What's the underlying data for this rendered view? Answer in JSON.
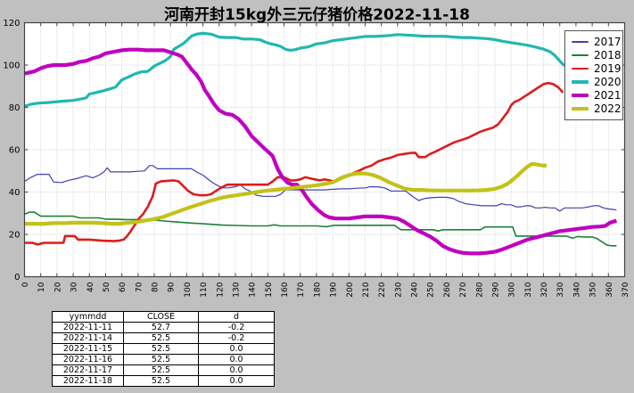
{
  "title": "河南开封15kg外三元仔猪价格2022-11-18",
  "colors": {
    "background": "#c0c0c0",
    "plot_bg": "#ffffff",
    "grid": "#b2b2c4",
    "frame": "#444444",
    "tick_label": "#000000"
  },
  "chart_data": {
    "type": "line",
    "title": "河南开封15kg外三元仔猪价格2022-11-18",
    "xlabel": "",
    "ylabel": "",
    "xlim": [
      0,
      370
    ],
    "ylim": [
      0,
      120
    ],
    "x_ticks": [
      0,
      10,
      20,
      30,
      40,
      50,
      60,
      70,
      80,
      90,
      100,
      110,
      120,
      130,
      140,
      150,
      160,
      170,
      180,
      190,
      200,
      210,
      220,
      230,
      240,
      250,
      260,
      270,
      280,
      290,
      300,
      310,
      320,
      330,
      340,
      350,
      360,
      370
    ],
    "y_ticks": [
      0,
      20,
      40,
      60,
      80,
      100,
      120
    ],
    "grid": true,
    "legend_position": "upper right",
    "x_axis_meaning": "day of year",
    "series": [
      {
        "name": "2017",
        "color": "#4040b0",
        "width": 1.2,
        "x": [
          0,
          4,
          8,
          15,
          18,
          23,
          27,
          32,
          38,
          42,
          46,
          49,
          51,
          53,
          60,
          65,
          70,
          74,
          77,
          79,
          82,
          85,
          95,
          103,
          106,
          110,
          114,
          118,
          122,
          126,
          130,
          133,
          136,
          139,
          143,
          147,
          151,
          155,
          158,
          161,
          165,
          170,
          175,
          180,
          185,
          190,
          195,
          200,
          205,
          210,
          213,
          218,
          222,
          226,
          230,
          235,
          240,
          243,
          247,
          251,
          255,
          260,
          264,
          268,
          272,
          277,
          282,
          287,
          291,
          294,
          297,
          300,
          303,
          306,
          309,
          312,
          315,
          318,
          321,
          324,
          327,
          330,
          333,
          336,
          340,
          344,
          348,
          351,
          354,
          357,
          360,
          363,
          365
        ],
        "y": [
          45,
          47,
          48.4,
          48.4,
          44.7,
          44.5,
          45.5,
          46.3,
          47.7,
          46.7,
          48,
          49.5,
          51.5,
          49.5,
          49.5,
          49.5,
          49.8,
          50,
          52.5,
          52.5,
          51,
          51,
          51,
          51,
          49.5,
          48,
          45.5,
          43.5,
          42,
          42,
          42.5,
          43.5,
          41.5,
          40.5,
          38.5,
          38,
          38,
          38,
          39,
          41,
          41,
          41,
          41,
          41,
          41,
          41.3,
          41.5,
          41.5,
          41.8,
          42,
          42.5,
          42.5,
          42,
          40.5,
          40.5,
          40.5,
          37.5,
          36,
          37,
          37.3,
          37.5,
          37.5,
          37,
          35.5,
          34.5,
          34,
          33.5,
          33.5,
          33.5,
          34.5,
          34,
          34,
          33,
          33,
          33.5,
          33.5,
          32.5,
          32.5,
          32.8,
          32.5,
          32.5,
          31,
          32.5,
          32.5,
          32.5,
          32.5,
          33,
          33.5,
          33.5,
          32.5,
          32,
          31.8,
          31.5
        ]
      },
      {
        "name": "2018",
        "color": "#1f8038",
        "width": 1.6,
        "x": [
          0,
          3,
          6,
          10,
          14,
          20,
          26,
          30,
          34,
          40,
          46,
          50,
          56,
          62,
          68,
          74,
          80,
          86,
          92,
          98,
          104,
          110,
          116,
          122,
          130,
          140,
          150,
          154,
          158,
          165,
          172,
          180,
          186,
          191,
          200,
          210,
          220,
          228,
          232,
          236,
          244,
          252,
          255,
          258,
          262,
          268,
          272,
          276,
          281,
          284,
          288,
          295,
          301,
          303,
          310,
          318,
          326,
          334,
          338,
          341,
          345,
          350,
          353,
          356,
          359,
          362,
          365
        ],
        "y": [
          29.5,
          30.5,
          30.5,
          28.6,
          28.6,
          28.6,
          28.6,
          28.6,
          27.8,
          27.8,
          27.8,
          27.2,
          27.2,
          27,
          27,
          26.8,
          26.8,
          26.3,
          26,
          25.6,
          25.3,
          25,
          24.7,
          24.4,
          24.2,
          24,
          24,
          24.5,
          24,
          24,
          24,
          24,
          23.6,
          24.3,
          24.3,
          24.3,
          24.3,
          24.3,
          22.2,
          22.2,
          22.2,
          22.2,
          21.6,
          22.2,
          22.2,
          22.2,
          22.2,
          22.2,
          22.2,
          23.5,
          23.5,
          23.5,
          23.5,
          19.2,
          19.2,
          19.2,
          19.2,
          19.2,
          18.2,
          19,
          18.8,
          18.8,
          18,
          16.5,
          15,
          14.6,
          14.6
        ]
      },
      {
        "name": "2019",
        "color": "#dd1c1c",
        "width": 2.6,
        "x": [
          0,
          5,
          8,
          12,
          20,
          24,
          25,
          31,
          33,
          40,
          48,
          55,
          58,
          61,
          63,
          65,
          68,
          70,
          73,
          76,
          79,
          81,
          84,
          88,
          92,
          95,
          97,
          99,
          101,
          104,
          108,
          112,
          115,
          118,
          121,
          125,
          130,
          135,
          140,
          145,
          150,
          153,
          156,
          160,
          164,
          167,
          170,
          173,
          176,
          179,
          182,
          185,
          188,
          191,
          194,
          197,
          200,
          203,
          206,
          210,
          214,
          218,
          222,
          226,
          230,
          234,
          238,
          241,
          243,
          247,
          250,
          253,
          257,
          261,
          265,
          269,
          273,
          277,
          281,
          285,
          289,
          292,
          295,
          298,
          300,
          302,
          305,
          308,
          311,
          314,
          317,
          320,
          323,
          326,
          329,
          332
        ],
        "y": [
          16,
          16,
          15.2,
          16,
          16,
          16,
          19.2,
          19.2,
          17.5,
          17.5,
          17,
          16.8,
          17,
          17.5,
          19,
          21,
          24.5,
          27,
          29.5,
          33,
          38,
          44,
          45,
          45.3,
          45.5,
          45,
          43.5,
          42,
          40.5,
          39,
          38.5,
          38.5,
          39,
          40.5,
          42,
          43.5,
          43.5,
          43.5,
          43.5,
          43.5,
          43.5,
          45,
          47,
          47,
          45.5,
          45.5,
          46,
          47,
          46.5,
          46,
          45.5,
          46,
          45.5,
          45,
          46.5,
          47.5,
          48,
          49,
          50,
          51.5,
          52.5,
          54.5,
          55.5,
          56.3,
          57.5,
          58,
          58.5,
          58.5,
          56.5,
          56.5,
          58,
          59,
          60.5,
          62,
          63.5,
          64.5,
          65.5,
          67,
          68.5,
          69.5,
          70.5,
          72,
          75,
          78,
          81,
          82.5,
          83.5,
          85,
          86.5,
          88,
          89.5,
          91,
          91.5,
          91,
          89.5,
          87
        ]
      },
      {
        "name": "2020",
        "color": "#20b8b0",
        "width": 3.2,
        "x": [
          0,
          4,
          8,
          15,
          20,
          25,
          30,
          35,
          38,
          40,
          44,
          48,
          52,
          56,
          60,
          64,
          68,
          72,
          76,
          80,
          84,
          87,
          90,
          92,
          95,
          98,
          100,
          103,
          106,
          110,
          115,
          120,
          125,
          130,
          135,
          140,
          145,
          148,
          151,
          155,
          158,
          161,
          164,
          167,
          170,
          175,
          180,
          185,
          190,
          195,
          200,
          205,
          210,
          215,
          220,
          225,
          230,
          235,
          240,
          245,
          250,
          255,
          260,
          265,
          270,
          275,
          280,
          285,
          290,
          295,
          300,
          305,
          310,
          315,
          320,
          324,
          327,
          330,
          332,
          334
        ],
        "y": [
          80.5,
          81.5,
          82,
          82.3,
          82.7,
          83,
          83.3,
          84,
          84.5,
          86.3,
          87,
          87.7,
          88.6,
          89.5,
          93,
          94.3,
          95.8,
          96.8,
          97,
          99.5,
          101,
          102.2,
          104,
          107.4,
          108.8,
          110.2,
          111.6,
          113.7,
          114.6,
          115,
          114.6,
          113.2,
          113,
          113,
          112.3,
          112.3,
          112,
          111,
          110.2,
          109.5,
          108.8,
          107.4,
          107,
          107.3,
          108,
          108.6,
          110,
          110.5,
          111.5,
          112,
          112.5,
          113,
          113.5,
          113.5,
          113.7,
          114,
          114.4,
          114.2,
          114,
          113.7,
          113.6,
          113.6,
          113.5,
          113.2,
          113,
          113,
          112.7,
          112.5,
          112,
          111.2,
          110.6,
          110,
          109.4,
          108.5,
          107.5,
          106.3,
          104.5,
          102,
          100.3,
          99.5
        ]
      },
      {
        "name": "2021",
        "color": "#c000c0",
        "width": 4.2,
        "x": [
          0,
          3,
          6,
          10,
          14,
          18,
          25,
          30,
          34,
          38,
          42,
          46,
          50,
          53,
          56,
          60,
          65,
          70,
          75,
          80,
          86,
          90,
          94,
          97,
          100,
          103,
          106,
          109,
          111,
          114,
          117,
          120,
          124,
          128,
          132,
          136,
          140,
          144,
          148,
          151,
          153,
          156,
          159,
          162,
          165,
          168,
          171,
          174,
          177,
          181,
          185,
          188,
          192,
          196,
          200,
          205,
          210,
          215,
          220,
          225,
          230,
          234,
          238,
          242,
          246,
          250,
          254,
          258,
          262,
          266,
          270,
          275,
          280,
          285,
          290,
          295,
          300,
          305,
          310,
          315,
          320,
          325,
          330,
          335,
          340,
          345,
          350,
          355,
          358,
          361,
          363,
          365
        ],
        "y": [
          96,
          96.5,
          97,
          98.5,
          99.5,
          100,
          100,
          100.5,
          101.5,
          102,
          103.2,
          104,
          105.5,
          106,
          106.4,
          107,
          107.3,
          107.3,
          107,
          107,
          107,
          106,
          105,
          104,
          101,
          98,
          95.4,
          92,
          88.4,
          85,
          81.4,
          78.6,
          77,
          76.5,
          74.5,
          71,
          66.5,
          63.5,
          60.5,
          58.5,
          57,
          51,
          47,
          44.5,
          43.5,
          43.5,
          41,
          37.5,
          34.5,
          31.5,
          29,
          28,
          27.5,
          27.5,
          27.5,
          28,
          28.5,
          28.5,
          28.5,
          28,
          27.5,
          26,
          24,
          22,
          20.5,
          19,
          17,
          14.5,
          13,
          12,
          11.3,
          11,
          11,
          11.3,
          11.8,
          13,
          14.5,
          16,
          17.5,
          18.5,
          19.5,
          20.5,
          21.5,
          22,
          22.5,
          23,
          23.5,
          23.7,
          24,
          25.5,
          26,
          26.5
        ]
      },
      {
        "name": "2022",
        "color": "#c2c218",
        "width": 4.2,
        "x": [
          0,
          6,
          12,
          18,
          24,
          30,
          36,
          42,
          48,
          54,
          58,
          62,
          66,
          70,
          74,
          78,
          82,
          86,
          90,
          94,
          98,
          102,
          106,
          110,
          114,
          118,
          122,
          126,
          130,
          135,
          140,
          145,
          150,
          155,
          160,
          165,
          170,
          175,
          180,
          185,
          190,
          195,
          200,
          205,
          210,
          215,
          220,
          225,
          230,
          235,
          240,
          245,
          250,
          255,
          260,
          265,
          270,
          275,
          280,
          285,
          290,
          294,
          298,
          301,
          304,
          307,
          310,
          313,
          316,
          319,
          322
        ],
        "y": [
          25,
          25,
          25,
          25.3,
          25.3,
          25.5,
          25.5,
          25.5,
          25.3,
          25,
          25,
          25.3,
          25.6,
          26,
          26.5,
          27,
          27.6,
          28.4,
          29.5,
          30.6,
          31.7,
          32.8,
          33.8,
          34.8,
          35.8,
          36.6,
          37.4,
          38,
          38.4,
          39,
          39.6,
          40.2,
          40.7,
          41.1,
          41.5,
          41.9,
          42.3,
          42.7,
          43.2,
          43.8,
          44.6,
          46.5,
          48,
          48.8,
          48.8,
          48,
          46.5,
          44.5,
          43,
          41.5,
          41,
          41,
          40.8,
          40.7,
          40.7,
          40.7,
          40.7,
          40.7,
          40.8,
          41,
          41.5,
          42.5,
          44,
          45.8,
          47.8,
          50,
          52,
          53.3,
          53,
          52.6,
          52.5
        ]
      }
    ]
  },
  "table": {
    "headers": [
      "yymmdd",
      "CLOSE",
      "d"
    ],
    "rows": [
      [
        "2022-11-11",
        "52.7",
        "-0.2"
      ],
      [
        "2022-11-14",
        "52.5",
        "-0.2"
      ],
      [
        "2022-11-15",
        "52.5",
        "0.0"
      ],
      [
        "2022-11-16",
        "52.5",
        "0.0"
      ],
      [
        "2022-11-17",
        "52.5",
        "0.0"
      ],
      [
        "2022-11-18",
        "52.5",
        "0.0"
      ]
    ]
  }
}
